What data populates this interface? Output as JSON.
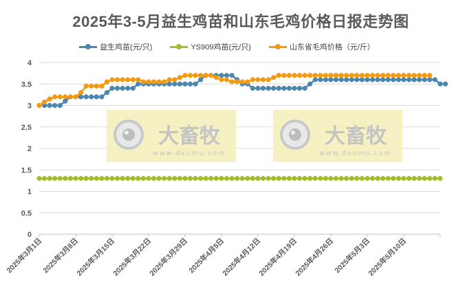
{
  "chart_data": {
    "type": "line",
    "title": "2025年3-5月益生鸡苗和山东毛鸡价格日报走势图",
    "xlabel": "",
    "ylabel": "",
    "ylim": [
      0,
      4
    ],
    "yticks": [
      "0",
      "0.5",
      "1",
      "1.5",
      "2",
      "2.5",
      "3",
      "3.5",
      "4"
    ],
    "grid": true,
    "legend_position": "top",
    "x_start": "2025-03-01",
    "x_end": "2025-05-17",
    "xtick_labels": [
      "2025年3月1日",
      "2025年3月8日",
      "2025年3月15日",
      "2025年3月22日",
      "2025年3月29日",
      "2025年4月5日",
      "2025年4月12日",
      "2025年4月19日",
      "2025年4月26日",
      "2025年5月3日",
      "2025年5月10日"
    ],
    "series": [
      {
        "name": "益生鸡苗(元/只)",
        "color": "#4A87B0",
        "values": [
          3.0,
          3.0,
          3.0,
          3.0,
          3.1,
          3.2,
          3.2,
          3.2,
          3.2,
          3.2,
          3.2,
          3.2,
          3.3,
          3.4,
          3.4,
          3.4,
          3.4,
          3.4,
          3.5,
          3.5,
          3.5,
          3.5,
          3.5,
          3.5,
          3.5,
          3.5,
          3.5,
          3.5,
          3.5,
          3.5,
          3.6,
          3.7,
          3.7,
          3.7,
          3.7,
          3.7,
          3.7,
          3.6,
          3.5,
          3.5,
          3.4,
          3.4,
          3.4,
          3.4,
          3.4,
          3.4,
          3.4,
          3.4,
          3.4,
          3.4,
          3.4,
          3.5,
          3.6,
          3.6,
          3.6,
          3.6,
          3.6,
          3.6,
          3.6,
          3.6,
          3.6,
          3.6,
          3.6,
          3.6,
          3.6,
          3.6,
          3.6,
          3.6,
          3.6,
          3.6,
          3.6,
          3.6,
          3.6,
          3.6,
          3.6,
          3.6,
          3.5,
          3.5
        ],
        "start_index": 1
      },
      {
        "name": "YS909鸡苗(元/只)",
        "color": "#A4BC2E",
        "values": [
          1.3,
          1.3,
          1.3,
          1.3,
          1.3,
          1.3,
          1.3,
          1.3,
          1.3,
          1.3,
          1.3,
          1.3,
          1.3,
          1.3,
          1.3,
          1.3,
          1.3,
          1.3,
          1.3,
          1.3,
          1.3,
          1.3,
          1.3,
          1.3,
          1.3,
          1.3,
          1.3,
          1.3,
          1.3,
          1.3,
          1.3,
          1.3,
          1.3,
          1.3,
          1.3,
          1.3,
          1.3,
          1.3,
          1.3,
          1.3,
          1.3,
          1.3,
          1.3,
          1.3,
          1.3,
          1.3,
          1.3,
          1.3,
          1.3,
          1.3,
          1.3,
          1.3,
          1.3,
          1.3,
          1.3,
          1.3,
          1.3,
          1.3,
          1.3,
          1.3,
          1.3,
          1.3,
          1.3,
          1.3,
          1.3,
          1.3,
          1.3,
          1.3,
          1.3,
          1.3,
          1.3,
          1.3,
          1.3,
          1.3,
          1.3,
          1.3,
          1.3,
          1.3
        ],
        "start_index": 0
      },
      {
        "name": "山东省毛鸡价格（元/斤）",
        "color": "#F29A12",
        "values": [
          3.0,
          3.08,
          3.15,
          3.2,
          3.2,
          3.2,
          3.2,
          3.2,
          3.3,
          3.45,
          3.45,
          3.45,
          3.45,
          3.55,
          3.6,
          3.6,
          3.6,
          3.6,
          3.6,
          3.6,
          3.55,
          3.55,
          3.55,
          3.55,
          3.55,
          3.6,
          3.6,
          3.65,
          3.7,
          3.7,
          3.7,
          3.7,
          3.7,
          3.7,
          3.65,
          3.6,
          3.6,
          3.55,
          3.55,
          3.55,
          3.55,
          3.6,
          3.6,
          3.6,
          3.6,
          3.65,
          3.7,
          3.7,
          3.7,
          3.7,
          3.7,
          3.7,
          3.7,
          3.7,
          3.7,
          3.7,
          3.7,
          3.7,
          3.7,
          3.7,
          3.7,
          3.7,
          3.7,
          3.7,
          3.7,
          3.7,
          3.7,
          3.7,
          3.7,
          3.7,
          3.7,
          3.7,
          3.7,
          3.7,
          3.7,
          3.7
        ],
        "start_index": 0
      }
    ]
  },
  "watermarks": [
    {
      "brand": "大畜牧",
      "url": "www.dxumu.com"
    },
    {
      "brand": "大畜牧",
      "url": "www.dxumu.com"
    }
  ]
}
